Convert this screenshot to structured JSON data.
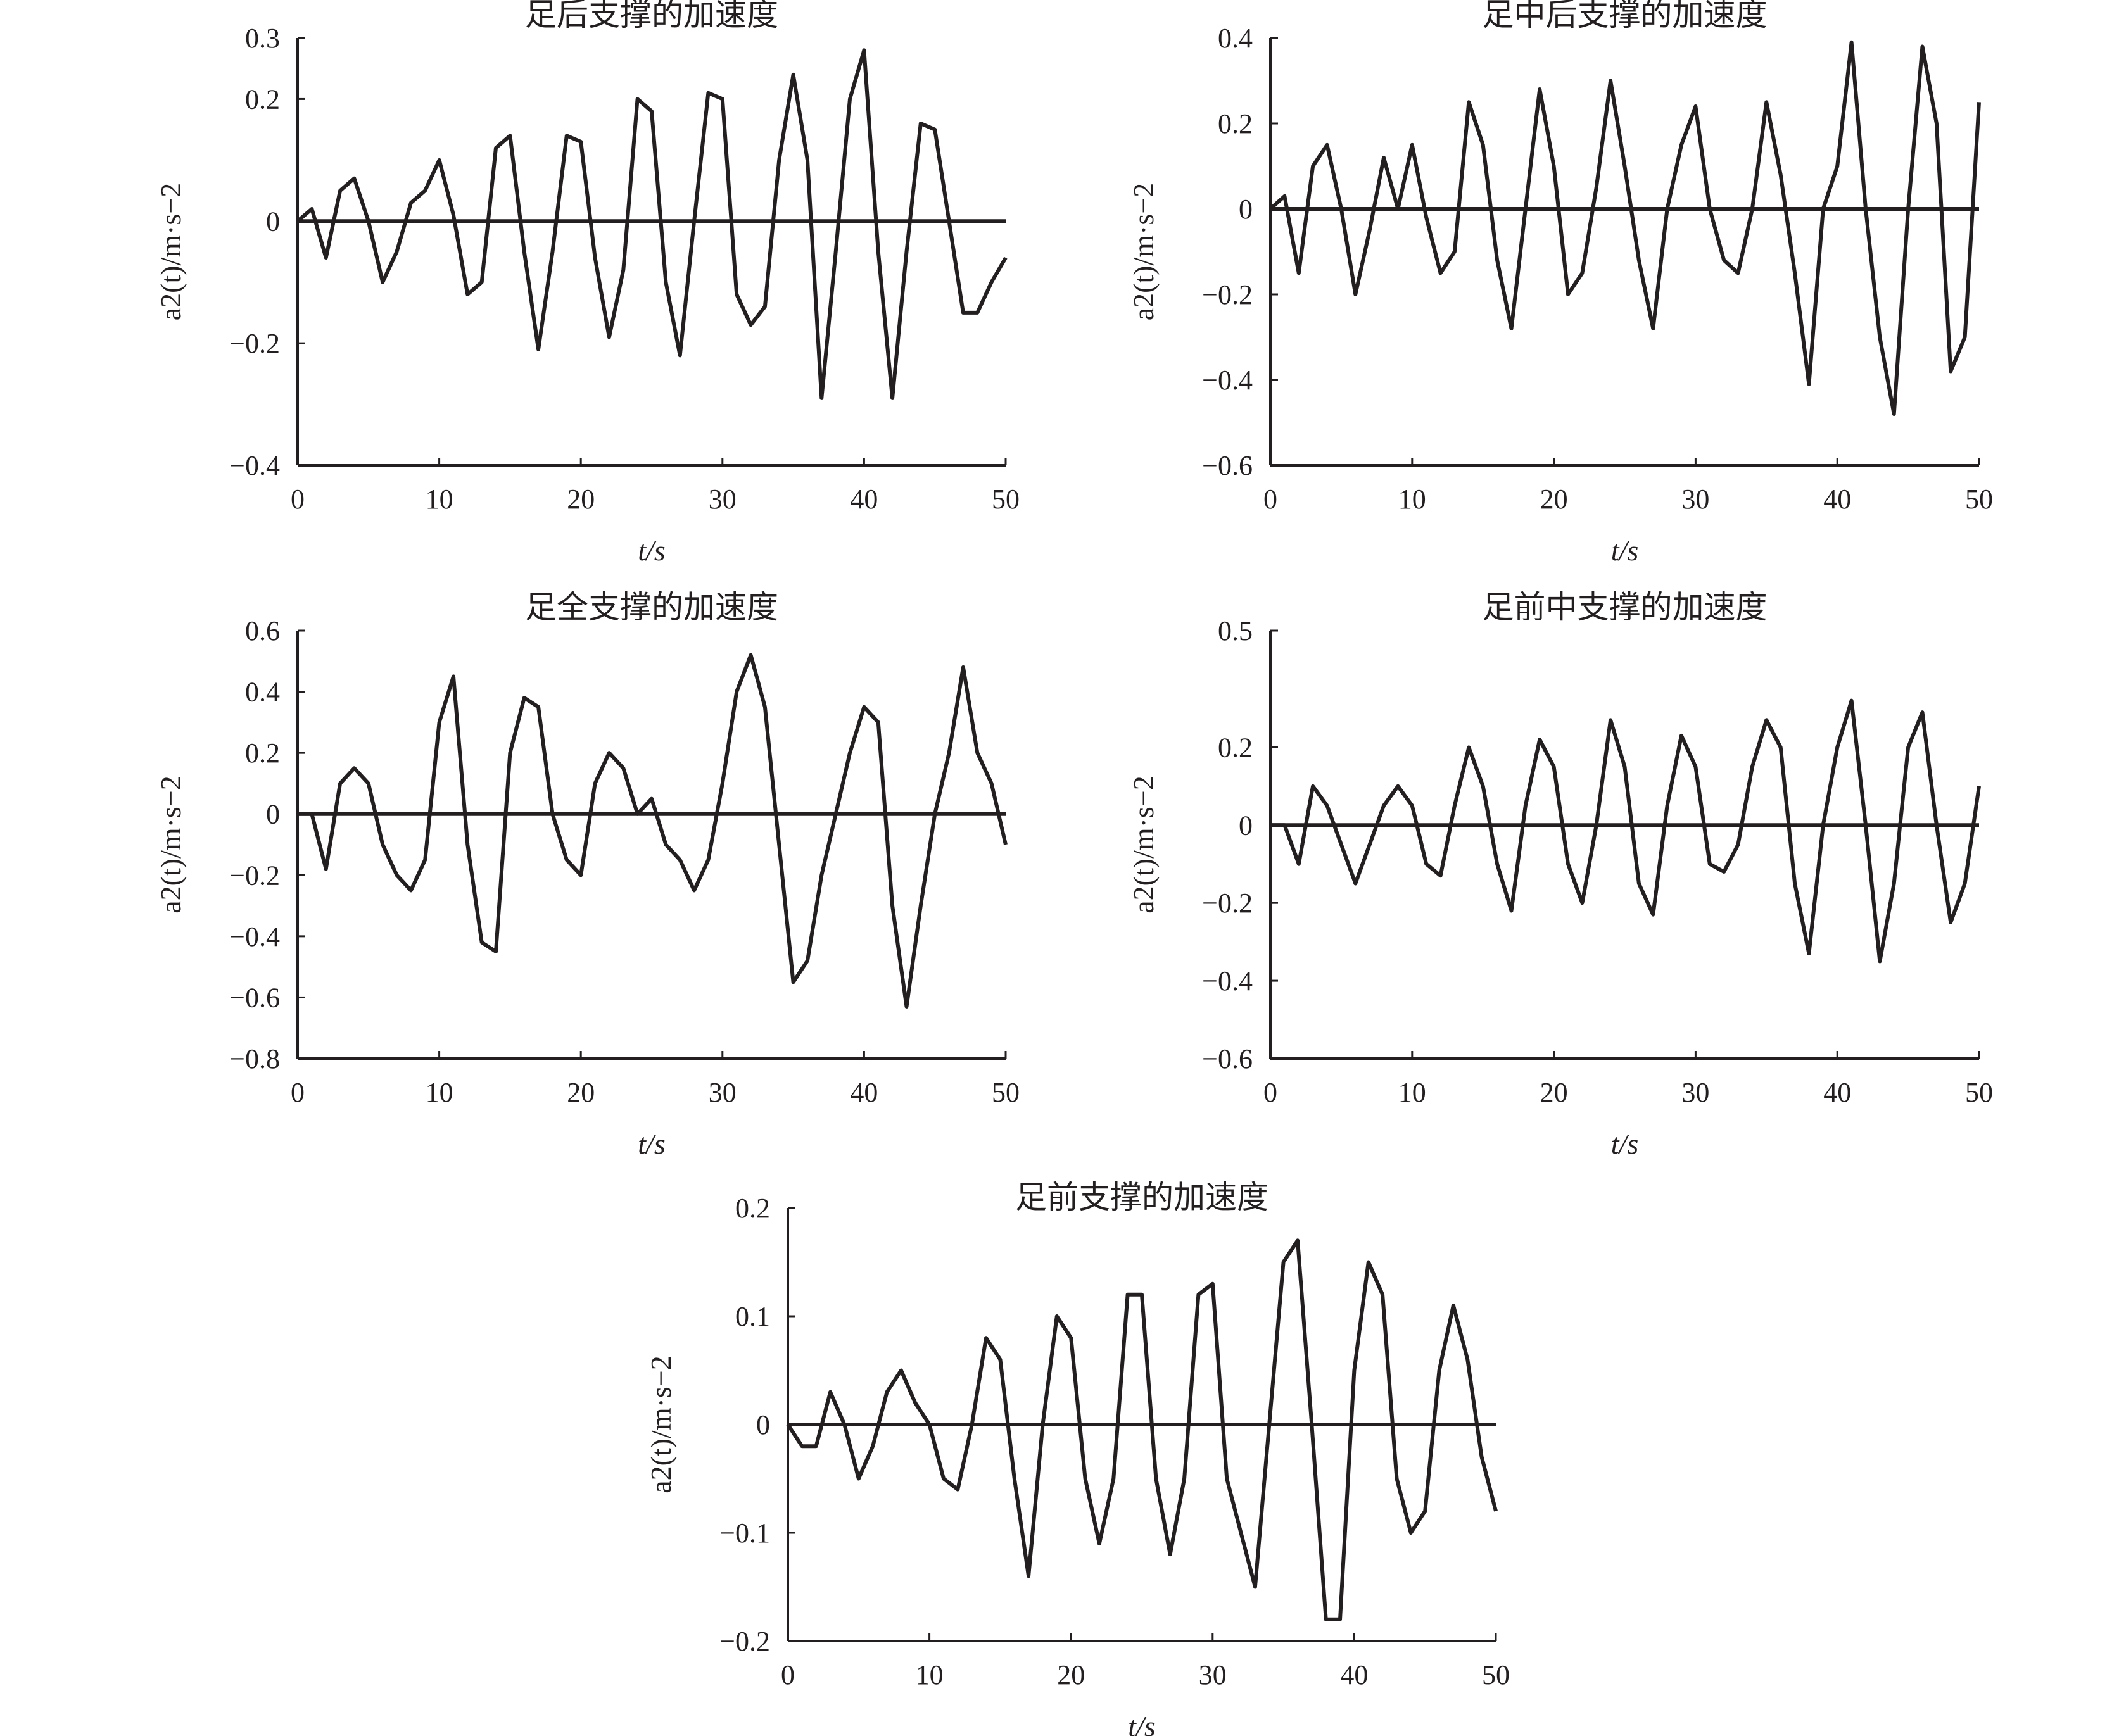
{
  "chart_data": [
    {
      "type": "line",
      "title": "足后支撑的加速度",
      "xlabel": "t/s",
      "ylabel": "a2(t)/m·s−2",
      "xlim": [
        0,
        50
      ],
      "ylim": [
        -0.4,
        0.3
      ],
      "xticks": [
        "0",
        "10",
        "20",
        "30",
        "40",
        "50"
      ],
      "yticks": [
        {
          "v": 0.3,
          "label": "0.3"
        },
        {
          "v": 0.2,
          "label": "0.2"
        },
        {
          "v": 0,
          "label": "0"
        },
        {
          "v": -0.2,
          "label": "−0.2"
        },
        {
          "v": -0.4,
          "label": "−0.4"
        }
      ],
      "zero_line": 0,
      "color": "#231f20",
      "series": [
        {
          "x": [
            0,
            1,
            2,
            3,
            4,
            5,
            6,
            7,
            8,
            9,
            10,
            11,
            12,
            13,
            14,
            15,
            16,
            17,
            18,
            19,
            20,
            21,
            22,
            23,
            24,
            25,
            26,
            27,
            28,
            29,
            30,
            31,
            32,
            33,
            34,
            35,
            36,
            37,
            38,
            39,
            40,
            41,
            42,
            43,
            44,
            45,
            46,
            47,
            48,
            49,
            50
          ],
          "y": [
            0.0,
            0.02,
            -0.06,
            0.05,
            0.07,
            0.0,
            -0.1,
            -0.05,
            0.03,
            0.05,
            0.1,
            0.01,
            -0.12,
            -0.1,
            0.12,
            0.14,
            -0.05,
            -0.21,
            -0.05,
            0.14,
            0.13,
            -0.06,
            -0.19,
            -0.08,
            0.2,
            0.18,
            -0.1,
            -0.22,
            0.0,
            0.21,
            0.2,
            -0.12,
            -0.17,
            -0.14,
            0.1,
            0.24,
            0.1,
            -0.29,
            -0.05,
            0.2,
            0.28,
            -0.05,
            -0.29,
            -0.05,
            0.16,
            0.15,
            0.0,
            -0.15,
            -0.15,
            -0.1,
            -0.06
          ]
        }
      ]
    },
    {
      "type": "line",
      "title": "足中后支撑的加速度",
      "xlabel": "t/s",
      "ylabel": "a2(t)/m·s−2",
      "xlim": [
        0,
        50
      ],
      "ylim": [
        -0.6,
        0.4
      ],
      "xticks": [
        "0",
        "10",
        "20",
        "30",
        "40",
        "50"
      ],
      "yticks": [
        {
          "v": 0.4,
          "label": "0.4"
        },
        {
          "v": 0.2,
          "label": "0.2"
        },
        {
          "v": 0,
          "label": "0"
        },
        {
          "v": -0.2,
          "label": "−0.2"
        },
        {
          "v": -0.4,
          "label": "−0.4"
        },
        {
          "v": -0.6,
          "label": "−0.6"
        }
      ],
      "zero_line": 0,
      "color": "#231f20",
      "series": [
        {
          "x": [
            0,
            1,
            2,
            3,
            4,
            5,
            6,
            7,
            8,
            9,
            10,
            11,
            12,
            13,
            14,
            15,
            16,
            17,
            18,
            19,
            20,
            21,
            22,
            23,
            24,
            25,
            26,
            27,
            28,
            29,
            30,
            31,
            32,
            33,
            34,
            35,
            36,
            37,
            38,
            39,
            40,
            41,
            42,
            43,
            44,
            45,
            46,
            47,
            48,
            49,
            50
          ],
          "y": [
            0.0,
            0.03,
            -0.15,
            0.1,
            0.15,
            0.0,
            -0.2,
            -0.05,
            0.12,
            0.0,
            0.15,
            -0.02,
            -0.15,
            -0.1,
            0.25,
            0.15,
            -0.12,
            -0.28,
            0.0,
            0.28,
            0.1,
            -0.2,
            -0.15,
            0.05,
            0.3,
            0.1,
            -0.12,
            -0.28,
            0.0,
            0.15,
            0.24,
            0.0,
            -0.12,
            -0.15,
            0.0,
            0.25,
            0.08,
            -0.15,
            -0.41,
            0.0,
            0.1,
            0.39,
            0.0,
            -0.3,
            -0.48,
            0.0,
            0.38,
            0.2,
            -0.38,
            -0.3,
            0.25
          ]
        }
      ]
    },
    {
      "type": "line",
      "title": "足全支撑的加速度",
      "xlabel": "t/s",
      "ylabel": "a2(t)/m·s−2",
      "xlim": [
        0,
        50
      ],
      "ylim": [
        -0.8,
        0.6
      ],
      "xticks": [
        "0",
        "10",
        "20",
        "30",
        "40",
        "50"
      ],
      "yticks": [
        {
          "v": 0.6,
          "label": "0.6"
        },
        {
          "v": 0.4,
          "label": "0.4"
        },
        {
          "v": 0.2,
          "label": "0.2"
        },
        {
          "v": 0,
          "label": "0"
        },
        {
          "v": -0.2,
          "label": "−0.2"
        },
        {
          "v": -0.4,
          "label": "−0.4"
        },
        {
          "v": -0.6,
          "label": "−0.6"
        },
        {
          "v": -0.8,
          "label": "−0.8"
        }
      ],
      "zero_line": 0,
      "color": "#231f20",
      "series": [
        {
          "x": [
            0,
            1,
            2,
            3,
            4,
            5,
            6,
            7,
            8,
            9,
            10,
            11,
            12,
            13,
            14,
            15,
            16,
            17,
            18,
            19,
            20,
            21,
            22,
            23,
            24,
            25,
            26,
            27,
            28,
            29,
            30,
            31,
            32,
            33,
            34,
            35,
            36,
            37,
            38,
            39,
            40,
            41,
            42,
            43,
            44,
            45,
            46,
            47,
            48,
            49,
            50
          ],
          "y": [
            0.0,
            0.0,
            -0.18,
            0.1,
            0.15,
            0.1,
            -0.1,
            -0.2,
            -0.25,
            -0.15,
            0.3,
            0.45,
            -0.1,
            -0.42,
            -0.45,
            0.2,
            0.38,
            0.35,
            0.0,
            -0.15,
            -0.2,
            0.1,
            0.2,
            0.15,
            0.0,
            0.05,
            -0.1,
            -0.15,
            -0.25,
            -0.15,
            0.1,
            0.4,
            0.52,
            0.35,
            -0.1,
            -0.55,
            -0.48,
            -0.2,
            0.0,
            0.2,
            0.35,
            0.3,
            -0.3,
            -0.63,
            -0.3,
            0.0,
            0.2,
            0.48,
            0.2,
            0.1,
            -0.1
          ]
        }
      ]
    },
    {
      "type": "line",
      "title": "足前中支撑的加速度",
      "xlabel": "t/s",
      "ylabel": "a2(t)/m·s−2",
      "xlim": [
        0,
        50
      ],
      "ylim": [
        -0.6,
        0.5
      ],
      "xticks": [
        "0",
        "10",
        "20",
        "30",
        "40",
        "50"
      ],
      "yticks": [
        {
          "v": 0.5,
          "label": "0.5"
        },
        {
          "v": 0.2,
          "label": "0.2"
        },
        {
          "v": 0,
          "label": "0"
        },
        {
          "v": -0.2,
          "label": "−0.2"
        },
        {
          "v": -0.4,
          "label": "−0.4"
        },
        {
          "v": -0.6,
          "label": "−0.6"
        }
      ],
      "zero_line": 0,
      "color": "#231f20",
      "series": [
        {
          "x": [
            0,
            1,
            2,
            3,
            4,
            5,
            6,
            7,
            8,
            9,
            10,
            11,
            12,
            13,
            14,
            15,
            16,
            17,
            18,
            19,
            20,
            21,
            22,
            23,
            24,
            25,
            26,
            27,
            28,
            29,
            30,
            31,
            32,
            33,
            34,
            35,
            36,
            37,
            38,
            39,
            40,
            41,
            42,
            43,
            44,
            45,
            46,
            47,
            48,
            49,
            50
          ],
          "y": [
            0.0,
            0.0,
            -0.1,
            0.1,
            0.05,
            -0.05,
            -0.15,
            -0.05,
            0.05,
            0.1,
            0.05,
            -0.1,
            -0.13,
            0.05,
            0.2,
            0.1,
            -0.1,
            -0.22,
            0.05,
            0.22,
            0.15,
            -0.1,
            -0.2,
            0.0,
            0.27,
            0.15,
            -0.15,
            -0.23,
            0.05,
            0.23,
            0.15,
            -0.1,
            -0.12,
            -0.05,
            0.15,
            0.27,
            0.2,
            -0.15,
            -0.33,
            0.0,
            0.2,
            0.32,
            0.0,
            -0.35,
            -0.15,
            0.2,
            0.29,
            0.0,
            -0.25,
            -0.15,
            0.1
          ]
        }
      ]
    },
    {
      "type": "line",
      "title": "足前支撑的加速度",
      "xlabel": "t/s",
      "ylabel": "a2(t)/m·s−2",
      "xlim": [
        0,
        50
      ],
      "ylim": [
        -0.2,
        0.2
      ],
      "xticks": [
        "0",
        "10",
        "20",
        "30",
        "40",
        "50"
      ],
      "yticks": [
        {
          "v": 0.2,
          "label": "0.2"
        },
        {
          "v": 0.1,
          "label": "0.1"
        },
        {
          "v": 0,
          "label": "0"
        },
        {
          "v": -0.1,
          "label": "−0.1"
        },
        {
          "v": -0.2,
          "label": "−0.2"
        }
      ],
      "zero_line": 0,
      "color": "#231f20",
      "series": [
        {
          "x": [
            0,
            1,
            2,
            3,
            4,
            5,
            6,
            7,
            8,
            9,
            10,
            11,
            12,
            13,
            14,
            15,
            16,
            17,
            18,
            19,
            20,
            21,
            22,
            23,
            24,
            25,
            26,
            27,
            28,
            29,
            30,
            31,
            32,
            33,
            34,
            35,
            36,
            37,
            38,
            39,
            40,
            41,
            42,
            43,
            44,
            45,
            46,
            47,
            48,
            49,
            50
          ],
          "y": [
            0.0,
            -0.02,
            -0.02,
            0.03,
            0.0,
            -0.05,
            -0.02,
            0.03,
            0.05,
            0.02,
            0.0,
            -0.05,
            -0.06,
            0.0,
            0.08,
            0.06,
            -0.05,
            -0.14,
            0.0,
            0.1,
            0.08,
            -0.05,
            -0.11,
            -0.05,
            0.12,
            0.12,
            -0.05,
            -0.12,
            -0.05,
            0.12,
            0.13,
            -0.05,
            -0.1,
            -0.15,
            0.0,
            0.15,
            0.17,
            0.0,
            -0.18,
            -0.18,
            0.05,
            0.15,
            0.12,
            -0.05,
            -0.1,
            -0.08,
            0.05,
            0.11,
            0.06,
            -0.03,
            -0.08
          ]
        }
      ]
    }
  ]
}
